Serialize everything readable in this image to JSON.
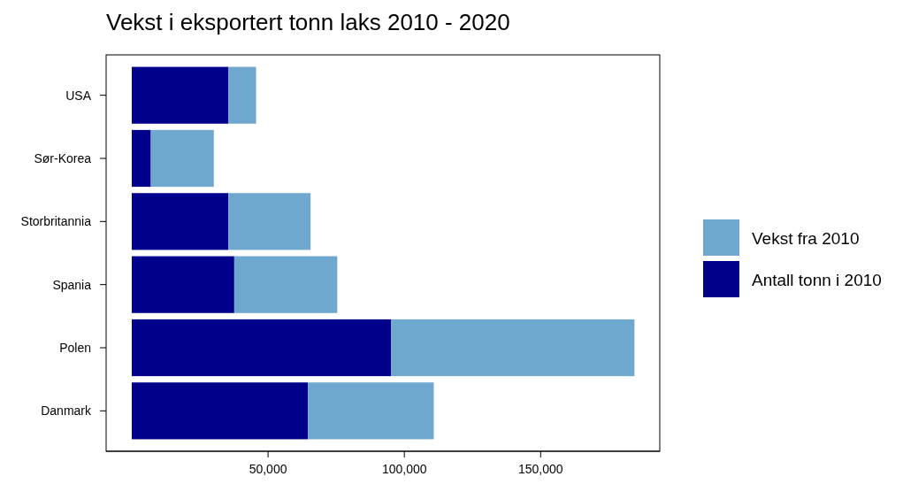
{
  "chart_data": {
    "type": "bar",
    "orientation": "horizontal",
    "stacked": true,
    "title": "Vekst i eksportert tonn laks 2010 - 2020",
    "categories": [
      "USA",
      "Sør-Korea",
      "Storbritannia",
      "Spania",
      "Polen",
      "Danmark"
    ],
    "series": [
      {
        "name": "Antall tonn i 2010",
        "color": "#00008b",
        "values": [
          35400,
          7000,
          35400,
          37600,
          95100,
          64600
        ]
      },
      {
        "name": "Vekst fra 2010",
        "color": "#6fa8cf",
        "values": [
          10200,
          23100,
          30200,
          37800,
          89300,
          46200
        ]
      }
    ],
    "xlim": [
      -9400,
      193700
    ],
    "xticks": [
      {
        "value": 50000,
        "label": "50,000"
      },
      {
        "value": 100000,
        "label": "100,000"
      },
      {
        "value": 150000,
        "label": "150,000"
      }
    ],
    "legend": "right",
    "grid": false
  }
}
